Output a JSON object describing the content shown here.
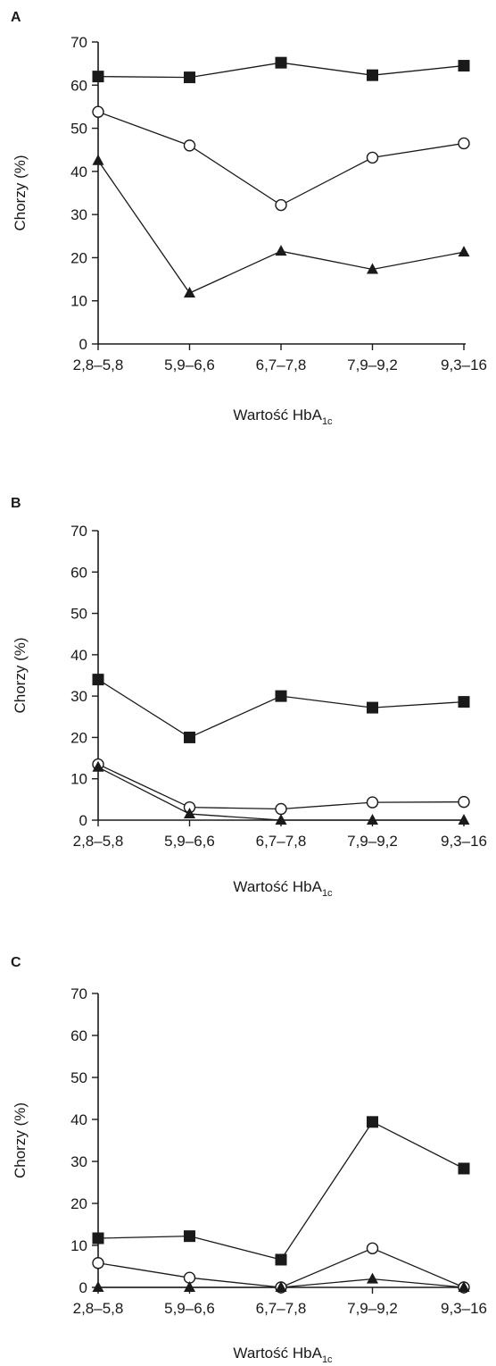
{
  "chart_data": [
    {
      "panel": "A",
      "type": "line",
      "categories": [
        "2,8–5,8",
        "5,9–6,6",
        "6,7–7,8",
        "7,9–9,2",
        "9,3–16"
      ],
      "ylabel": "Chorzy (%)",
      "xlabel_main": "Wartość HbA",
      "xlabel_sub": "1c",
      "ylim": [
        0,
        70
      ],
      "yticks": [
        0,
        10,
        20,
        30,
        40,
        50,
        60,
        70
      ],
      "series": [
        {
          "marker": "square",
          "values": [
            62,
            61.8,
            65.2,
            62.3,
            64.5
          ]
        },
        {
          "marker": "circle",
          "values": [
            53.8,
            46,
            32.2,
            43.2,
            46.5
          ]
        },
        {
          "marker": "triangle",
          "values": [
            42.5,
            11.8,
            21.5,
            17.3,
            21.3
          ]
        }
      ]
    },
    {
      "panel": "B",
      "type": "line",
      "categories": [
        "2,8–5,8",
        "5,9–6,6",
        "6,7–7,8",
        "7,9–9,2",
        "9,3–16"
      ],
      "ylabel": "Chorzy (%)",
      "xlabel_main": "Wartość HbA",
      "xlabel_sub": "1c",
      "ylim": [
        0,
        70
      ],
      "yticks": [
        0,
        10,
        20,
        30,
        40,
        50,
        60,
        70
      ],
      "series": [
        {
          "marker": "square",
          "values": [
            34,
            20,
            30,
            27.2,
            28.6
          ]
        },
        {
          "marker": "circle",
          "values": [
            13.5,
            3.1,
            2.7,
            4.3,
            4.4
          ]
        },
        {
          "marker": "triangle",
          "values": [
            12.8,
            1.5,
            0,
            0,
            0
          ]
        }
      ]
    },
    {
      "panel": "C",
      "type": "line",
      "categories": [
        "2,8–5,8",
        "5,9–6,6",
        "6,7–7,8",
        "7,9–9,2",
        "9,3–16"
      ],
      "ylabel": "Chorzy (%)",
      "xlabel_main": "Wartość HbA",
      "xlabel_sub": "1c",
      "ylim": [
        0,
        70
      ],
      "yticks": [
        0,
        10,
        20,
        30,
        40,
        50,
        60,
        70
      ],
      "series": [
        {
          "marker": "square",
          "values": [
            11.7,
            12.2,
            6.6,
            39.4,
            28.3
          ]
        },
        {
          "marker": "circle",
          "values": [
            5.8,
            2.3,
            0,
            9.3,
            0
          ]
        },
        {
          "marker": "triangle",
          "values": [
            0,
            0,
            0,
            2,
            0
          ]
        }
      ]
    }
  ]
}
